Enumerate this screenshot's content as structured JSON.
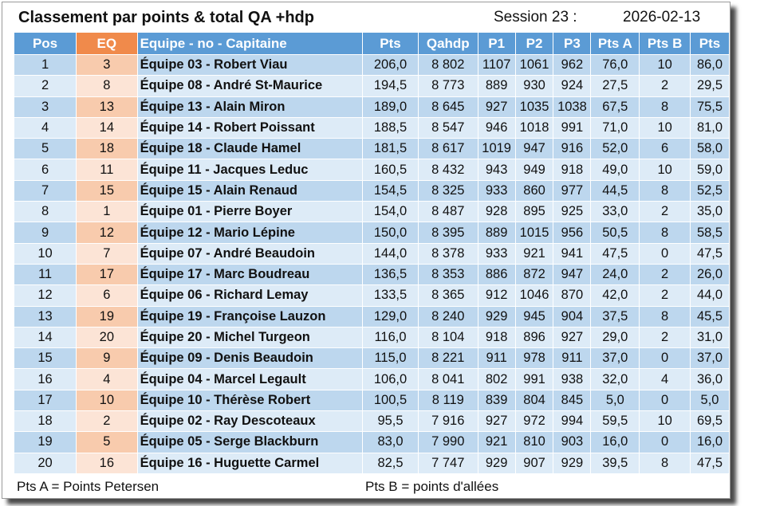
{
  "header": {
    "title": "Classement par points & total QA +hdp",
    "session": "Session 23 :",
    "date": "2026-02-13"
  },
  "table": {
    "columns": [
      "Pos",
      "EQ",
      "Equipe - no - Capitaine",
      "Pts",
      "Qahdp",
      "P1",
      "P2",
      "P3",
      "Pts A",
      "Pts B",
      "Pts"
    ],
    "rows": [
      [
        "1",
        "3",
        "Équipe 03 - Robert Viau",
        "206,0",
        "8 802",
        "1107",
        "1061",
        "962",
        "76,0",
        "10",
        "86,0"
      ],
      [
        "2",
        "8",
        "Équipe 08 - André St-Maurice",
        "194,5",
        "8 773",
        "889",
        "930",
        "924",
        "27,5",
        "2",
        "29,5"
      ],
      [
        "3",
        "13",
        "Équipe 13 - Alain Miron",
        "189,0",
        "8 645",
        "927",
        "1035",
        "1038",
        "67,5",
        "8",
        "75,5"
      ],
      [
        "4",
        "14",
        "Équipe 14 - Robert Poissant",
        "188,5",
        "8 547",
        "946",
        "1018",
        "991",
        "71,0",
        "10",
        "81,0"
      ],
      [
        "5",
        "18",
        "Équipe 18 - Claude Hamel",
        "181,5",
        "8 617",
        "1019",
        "947",
        "916",
        "52,0",
        "6",
        "58,0"
      ],
      [
        "6",
        "11",
        "Équipe 11 - Jacques Leduc",
        "160,5",
        "8 432",
        "943",
        "949",
        "918",
        "49,0",
        "10",
        "59,0"
      ],
      [
        "7",
        "15",
        "Équipe 15 - Alain Renaud",
        "154,5",
        "8 325",
        "933",
        "860",
        "977",
        "44,5",
        "8",
        "52,5"
      ],
      [
        "8",
        "1",
        "Équipe 01 - Pierre Boyer",
        "154,0",
        "8 487",
        "928",
        "895",
        "925",
        "33,0",
        "2",
        "35,0"
      ],
      [
        "9",
        "12",
        "Équipe 12 - Mario Lépine",
        "150,0",
        "8 395",
        "889",
        "1015",
        "956",
        "50,5",
        "8",
        "58,5"
      ],
      [
        "10",
        "7",
        "Équipe 07 - André Beaudoin",
        "144,0",
        "8 378",
        "933",
        "921",
        "941",
        "47,5",
        "0",
        "47,5"
      ],
      [
        "11",
        "17",
        "Équipe 17 - Marc Boudreau",
        "136,5",
        "8 353",
        "886",
        "872",
        "947",
        "24,0",
        "2",
        "26,0"
      ],
      [
        "12",
        "6",
        "Équipe 06 - Richard Lemay",
        "133,5",
        "8 365",
        "912",
        "1046",
        "870",
        "42,0",
        "2",
        "44,0"
      ],
      [
        "13",
        "19",
        "Équipe 19 - Françoise Lauzon",
        "129,0",
        "8 240",
        "929",
        "945",
        "904",
        "37,5",
        "8",
        "45,5"
      ],
      [
        "14",
        "20",
        "Équipe 20 - Michel Turgeon",
        "116,0",
        "8 104",
        "918",
        "896",
        "927",
        "29,0",
        "2",
        "31,0"
      ],
      [
        "15",
        "9",
        "Équipe 09 - Denis Beaudoin",
        "115,0",
        "8 221",
        "911",
        "978",
        "911",
        "37,0",
        "0",
        "37,0"
      ],
      [
        "16",
        "4",
        "Équipe 04 - Marcel Legault",
        "106,0",
        "8 041",
        "802",
        "991",
        "938",
        "32,0",
        "4",
        "36,0"
      ],
      [
        "17",
        "10",
        "Équipe 10 - Thérèse Robert",
        "100,5",
        "8 119",
        "839",
        "804",
        "845",
        "5,0",
        "0",
        "5,0"
      ],
      [
        "18",
        "2",
        "Équipe 02 - Ray Descoteaux",
        "95,5",
        "7 916",
        "927",
        "972",
        "994",
        "59,5",
        "10",
        "69,5"
      ],
      [
        "19",
        "5",
        "Équipe 05 - Serge Blackburn",
        "83,0",
        "7 990",
        "921",
        "810",
        "903",
        "16,0",
        "0",
        "16,0"
      ],
      [
        "20",
        "16",
        "Équipe 16 - Huguette Carmel",
        "82,5",
        "7 747",
        "929",
        "907",
        "929",
        "39,5",
        "8",
        "47,5"
      ]
    ]
  },
  "footer": {
    "left": "Pts A = Points Petersen",
    "right": "Pts B = points d'allées"
  }
}
